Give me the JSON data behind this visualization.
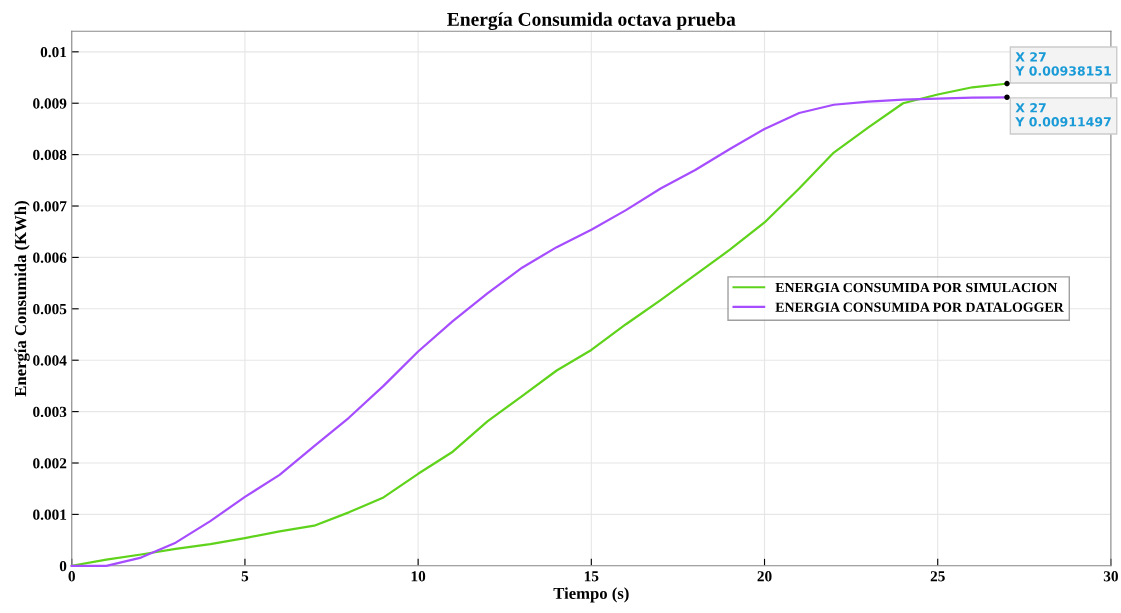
{
  "chart_data": {
    "type": "line",
    "title": "Energía Consumida octava prueba",
    "xlabel": "Tiempo (s)",
    "ylabel": "Energía Consumida (KWh)",
    "x": [
      0,
      1,
      2,
      3,
      4,
      5,
      6,
      7,
      8,
      9,
      10,
      11,
      12,
      13,
      14,
      15,
      16,
      17,
      18,
      19,
      20,
      21,
      22,
      23,
      24,
      25,
      26,
      27
    ],
    "series": [
      {
        "name": "ENERGIA CONSUMIDA POR SIMULACION",
        "color": "#5fd31b",
        "values": [
          0,
          0.00012,
          0.00022,
          0.00033,
          0.00042,
          0.00054,
          0.00067,
          0.00078,
          0.00104,
          0.00133,
          0.00179,
          0.00222,
          0.00281,
          0.0033,
          0.0038,
          0.0042,
          0.0047,
          0.00517,
          0.00566,
          0.00615,
          0.00668,
          0.00734,
          0.00804,
          0.00853,
          0.009,
          0.00917,
          0.00931,
          0.00938151
        ]
      },
      {
        "name": "ENERGIA CONSUMIDA POR DATALOGGER",
        "color": "#a64dff",
        "values": [
          0,
          0,
          0.00016,
          0.00045,
          0.00087,
          0.00134,
          0.00177,
          0.00233,
          0.00288,
          0.0035,
          0.00417,
          0.00476,
          0.0053,
          0.0058,
          0.0062,
          0.00654,
          0.00692,
          0.00734,
          0.0077,
          0.00811,
          0.0085,
          0.00881,
          0.00897,
          0.00903,
          0.00907,
          0.00909,
          0.00911,
          0.00911497
        ]
      }
    ],
    "xlim": [
      0,
      30
    ],
    "xticks": [
      0,
      5,
      10,
      15,
      20,
      25,
      30
    ],
    "ylim": [
      0,
      0.0104
    ],
    "yticks": [
      0,
      0.001,
      0.002,
      0.003,
      0.004,
      0.005,
      0.006,
      0.007,
      0.008,
      0.009,
      0.01
    ],
    "grid": true,
    "legend": "right",
    "marker": "none",
    "line_style": "solid",
    "annotations": [
      {
        "text": "X 27\nY 0.00938151",
        "x": 27,
        "y": 0.00938151
      },
      {
        "text": "X 27\nY 0.00911497",
        "x": 27,
        "y": 0.00911497
      }
    ]
  }
}
